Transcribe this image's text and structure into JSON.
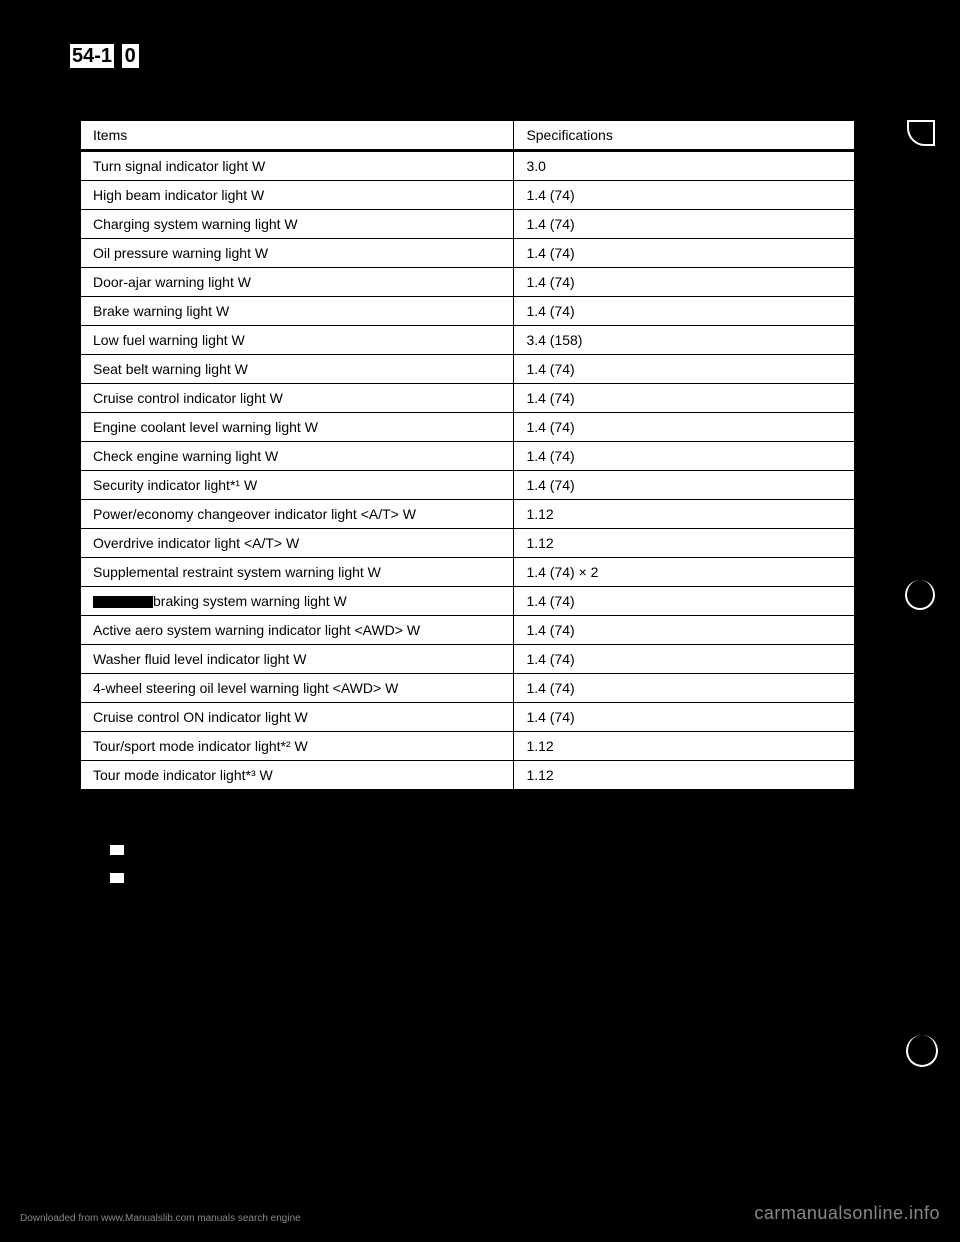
{
  "pageNumber": {
    "prefix": "54-1",
    "suffix": "0"
  },
  "table": {
    "headerLeft": "Items",
    "headerRight": "Specifications",
    "rows": [
      {
        "item": "Turn signal indicator light W",
        "spec": "3.0"
      },
      {
        "item": "High beam indicator light W",
        "spec": "1.4 (74)"
      },
      {
        "item": "Charging system warning light W",
        "spec": "1.4 (74)"
      },
      {
        "item": "Oil pressure warning light W",
        "spec": "1.4 (74)"
      },
      {
        "item": "Door-ajar warning light W",
        "spec": "1.4 (74)"
      },
      {
        "item": "Brake warning light W",
        "spec": "1.4 (74)"
      },
      {
        "item": "Low fuel warning light W",
        "spec": "3.4 (158)"
      },
      {
        "item": "Seat belt warning light W",
        "spec": "1.4 (74)"
      },
      {
        "item": "Cruise control indicator light W",
        "spec": "1.4 (74)"
      },
      {
        "item": "Engine coolant level warning light W",
        "spec": "1.4 (74)"
      },
      {
        "item": "Check engine warning light W",
        "spec": "1.4 (74)"
      },
      {
        "item": "Security indicator light*¹ W",
        "spec": "1.4 (74)"
      },
      {
        "item": "Power/economy changeover indicator light <A/T> W",
        "spec": "1.12"
      },
      {
        "item": "Overdrive indicator light <A/T> W",
        "spec": "1.12"
      },
      {
        "item": "Supplemental restraint system warning light W",
        "spec": "1.4 (74) × 2"
      },
      {
        "item": "braking system warning light W",
        "spec": "1.4 (74)",
        "redacted": true
      },
      {
        "item": "Active aero system warning indicator light <AWD> W",
        "spec": "1.4 (74)"
      },
      {
        "item": "Washer fluid level indicator light W",
        "spec": "1.4 (74)"
      },
      {
        "item": "4-wheel steering oil level warning light <AWD> W",
        "spec": "1.4 (74)"
      },
      {
        "item": "Cruise control ON indicator light W",
        "spec": "1.4 (74)"
      },
      {
        "item": "Tour/sport mode indicator light*² W",
        "spec": "1.12"
      },
      {
        "item": "Tour mode indicator light*³ W",
        "spec": "1.12"
      }
    ]
  },
  "footer": {
    "leftText": "Downloaded from www.Manualslib.com manuals search engine",
    "rightText": "carmanualsonline.info"
  }
}
